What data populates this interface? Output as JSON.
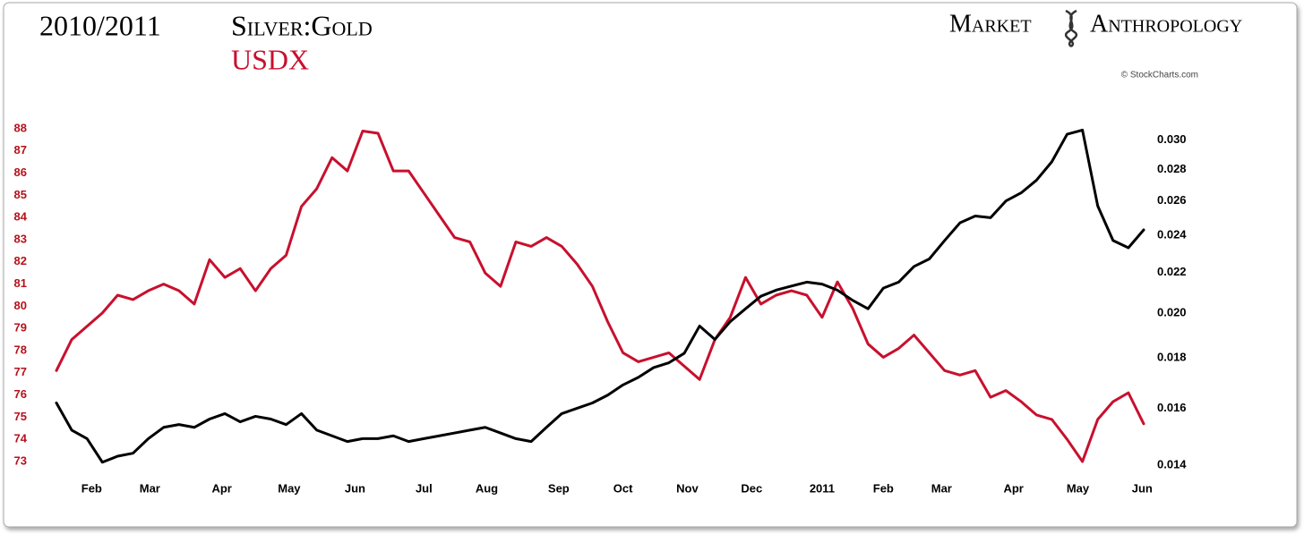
{
  "chart_data": {
    "type": "line",
    "title": "2010/2011",
    "brand_left": "Market",
    "brand_right": "Anthropology",
    "credit": "© StockCharts.com",
    "xlim": [
      0,
      71
    ],
    "xticks": [
      {
        "value": 2.3,
        "label": "Feb"
      },
      {
        "value": 6.1,
        "label": "Mar"
      },
      {
        "value": 10.8,
        "label": "Apr"
      },
      {
        "value": 15.2,
        "label": "May"
      },
      {
        "value": 19.5,
        "label": "Jun"
      },
      {
        "value": 24.0,
        "label": "Jul"
      },
      {
        "value": 28.1,
        "label": "Aug"
      },
      {
        "value": 32.8,
        "label": "Sep"
      },
      {
        "value": 37.0,
        "label": "Oct"
      },
      {
        "value": 41.2,
        "label": "Nov"
      },
      {
        "value": 45.4,
        "label": "Dec"
      },
      {
        "value": 50.0,
        "label": "2011"
      },
      {
        "value": 54.0,
        "label": "Feb"
      },
      {
        "value": 57.8,
        "label": "Mar"
      },
      {
        "value": 62.5,
        "label": "Apr"
      },
      {
        "value": 66.7,
        "label": "May"
      },
      {
        "value": 70.9,
        "label": "Jun"
      }
    ],
    "ylim": [
      72.5,
      88.5
    ],
    "yticks": [
      73,
      74,
      75,
      76,
      77,
      78,
      79,
      80,
      81,
      82,
      83,
      84,
      85,
      86,
      87,
      88
    ],
    "ytick_color": "#b5121b",
    "y2lim": [
      0.01376,
      0.0316
    ],
    "y2log": true,
    "y2ticks": [
      {
        "value": 0.014,
        "label": "0.014"
      },
      {
        "value": 0.016,
        "label": "0.016"
      },
      {
        "value": 0.018,
        "label": "0.018"
      },
      {
        "value": 0.02,
        "label": "0.020"
      },
      {
        "value": 0.022,
        "label": "0.022"
      },
      {
        "value": 0.024,
        "label": "0.024"
      },
      {
        "value": 0.026,
        "label": "0.026"
      },
      {
        "value": 0.028,
        "label": "0.028"
      },
      {
        "value": 0.03,
        "label": "0.030"
      }
    ],
    "grid": false,
    "series": [
      {
        "name": "Silver:Gold",
        "color": "#000000",
        "axis": "y2",
        "values": [
          0.0162,
          0.0152,
          0.0149,
          0.0141,
          0.0143,
          0.0144,
          0.0149,
          0.0153,
          0.0154,
          0.0153,
          0.0156,
          0.0158,
          0.0155,
          0.0157,
          0.0156,
          0.0154,
          0.0158,
          0.0152,
          0.015,
          0.0148,
          0.0149,
          0.0149,
          0.015,
          0.0148,
          0.0149,
          0.015,
          0.0151,
          0.0152,
          0.0153,
          0.0151,
          0.0149,
          0.0148,
          0.0153,
          0.0158,
          0.016,
          0.0162,
          0.0165,
          0.0169,
          0.0172,
          0.0176,
          0.0178,
          0.0182,
          0.0194,
          0.0188,
          0.0196,
          0.0202,
          0.0208,
          0.0211,
          0.0213,
          0.0215,
          0.0214,
          0.0211,
          0.0206,
          0.0202,
          0.0212,
          0.0215,
          0.0223,
          0.0227,
          0.0237,
          0.0247,
          0.0251,
          0.025,
          0.026,
          0.0265,
          0.0273,
          0.0285,
          0.0304,
          0.0307,
          0.0257,
          0.0237,
          0.0233,
          0.0243
        ]
      },
      {
        "name": "USDX",
        "color": "#c8102e",
        "values": [
          77.1,
          78.5,
          79.1,
          79.7,
          80.5,
          80.3,
          80.7,
          81.0,
          80.7,
          80.1,
          82.1,
          81.3,
          81.7,
          80.7,
          81.7,
          82.3,
          84.5,
          85.3,
          86.7,
          86.1,
          87.9,
          87.8,
          86.1,
          86.1,
          85.1,
          84.1,
          83.1,
          82.9,
          81.5,
          80.9,
          82.9,
          82.7,
          83.1,
          82.7,
          81.9,
          80.9,
          79.3,
          77.9,
          77.5,
          77.7,
          77.9,
          77.3,
          76.7,
          78.5,
          79.5,
          81.3,
          80.1,
          80.5,
          80.7,
          80.5,
          79.5,
          81.1,
          79.9,
          78.3,
          77.7,
          78.1,
          78.7,
          77.9,
          77.1,
          76.9,
          77.1,
          75.9,
          76.2,
          75.7,
          75.1,
          74.9,
          74.0,
          73.0,
          74.9,
          75.7,
          76.1,
          74.7
        ]
      }
    ]
  }
}
